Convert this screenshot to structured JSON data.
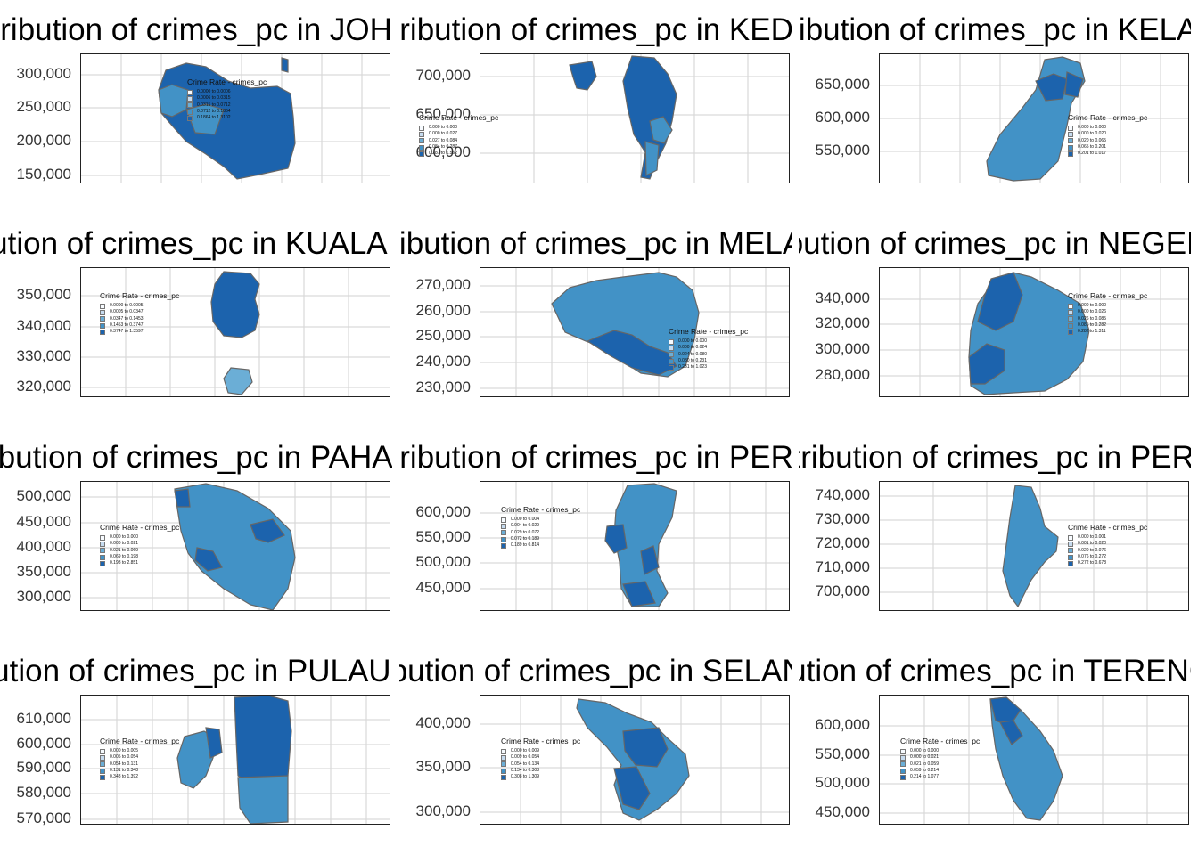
{
  "colors": {
    "classes": [
      "#f7fbff",
      "#c6dbef",
      "#6baed6",
      "#4292c6",
      "#1c63ad"
    ],
    "grid": "#d9d9d9",
    "border": "#666666"
  },
  "legend_title": "Crime Rate - crimes_pc",
  "panels": [
    {
      "title": "Distribution of crimes_pc in JOHOR",
      "title_offset": -60,
      "yticks": [
        "300,000",
        "250,000",
        "200,000",
        "150,000"
      ],
      "legend": [
        "0.0000 to 0.0006",
        "0.0006 to 0.0315",
        "0.0315 to 0.0712",
        "0.0712 to 0.1864",
        "0.1864 to 1.3102"
      ]
    },
    {
      "title": "Distribution of crimes_pc in KEDAH",
      "title_offset": -60,
      "yticks": [
        "700,000",
        "650,000",
        "600,000"
      ],
      "legend": [
        "0.000 to 0.000",
        "0.000 to 0.027",
        "0.027 to 0.084",
        "0.084 to 0.287",
        "0.287 to 1.562"
      ]
    },
    {
      "title": "Distribution of crimes_pc in KELANTAN",
      "title_offset": -72,
      "yticks": [
        "650,000",
        "600,000",
        "550,000"
      ],
      "legend": [
        "0.000 to 0.000",
        "0.000 to 0.020",
        "0.020 to 0.065",
        "0.065 to 0.201",
        "0.201 to 1.017"
      ]
    },
    {
      "title": "Distribution of crimes_pc in KUALA LUMPUR",
      "title_offset": -110,
      "yticks": [
        "350,000",
        "340,000",
        "330,000",
        "320,000"
      ],
      "legend": [
        "0.0000 to 0.0005",
        "0.0005 to 0.0347",
        "0.0347 to 0.1453",
        "0.1453 to 0.3747",
        "0.3747 to 1.3597"
      ]
    },
    {
      "title": "Distribution of crimes_pc in MELAKA",
      "title_offset": -72,
      "yticks": [
        "270,000",
        "260,000",
        "250,000",
        "240,000",
        "230,000"
      ],
      "legend": [
        "0.000 to 0.000",
        "0.000 to 0.024",
        "0.024 to 0.080",
        "0.080 to 0.231",
        "0.231 to 1.023"
      ]
    },
    {
      "title": "Distribution of crimes_pc in NEGERI SEMBILAN",
      "title_offset": -94,
      "yticks": [
        "340,000",
        "320,000",
        "300,000",
        "280,000"
      ],
      "legend": [
        "0.000 to 0.000",
        "0.000 to 0.026",
        "0.026 to 0.085",
        "0.085 to 0.282",
        "0.282 to 1.311"
      ]
    },
    {
      "title": "Distribution of crimes_pc in PAHANG",
      "title_offset": -82,
      "yticks": [
        "500,000",
        "450,000",
        "400,000",
        "350,000",
        "300,000"
      ],
      "legend": [
        "0.000 to 0.000",
        "0.000 to 0.021",
        "0.021 to 0.069",
        "0.069 to 0.198",
        "0.198 to 2.851"
      ]
    },
    {
      "title": "Distribution of crimes_pc in PERAK",
      "title_offset": -60,
      "yticks": [
        "600,000",
        "550,000",
        "500,000",
        "450,000"
      ],
      "legend": [
        "0.000 to 0.004",
        "0.004 to 0.029",
        "0.029 to 0.072",
        "0.072 to 0.189",
        "0.189 to 0.814"
      ]
    },
    {
      "title": "Distribution of crimes_pc in PERLIS",
      "title_offset": -58,
      "yticks": [
        "740,000",
        "730,000",
        "720,000",
        "710,000",
        "700,000"
      ],
      "legend": [
        "0.000 to 0.001",
        "0.001 to 0.020",
        "0.020 to 0.076",
        "0.076 to 0.272",
        "0.272 to 0.678"
      ]
    },
    {
      "title": "Distribution of crimes_pc in PULAU PINANG",
      "title_offset": -108,
      "yticks": [
        "610,000",
        "600,000",
        "590,000",
        "580,000",
        "570,000"
      ],
      "legend": [
        "0.000 to 0.005",
        "0.005 to 0.054",
        "0.054 to 0.131",
        "0.131 to 0.348",
        "0.348 to 1.392"
      ]
    },
    {
      "title": "Distribution of crimes_pc in SELANGOR",
      "title_offset": -90,
      "yticks": [
        "400,000",
        "350,000",
        "300,000"
      ],
      "legend": [
        "0.000 to 0.009",
        "0.009 to 0.054",
        "0.054 to 0.134",
        "0.134 to 0.308",
        "0.308 to 1.309"
      ]
    },
    {
      "title": "Distribution of crimes_pc in TERENGGANU",
      "title_offset": -110,
      "yticks": [
        "600,000",
        "550,000",
        "500,000",
        "450,000"
      ],
      "legend": [
        "0.000 to 0.000",
        "0.000 to 0.021",
        "0.021 to 0.059",
        "0.059 to 0.214",
        "0.214 to 1.077"
      ]
    }
  ]
}
